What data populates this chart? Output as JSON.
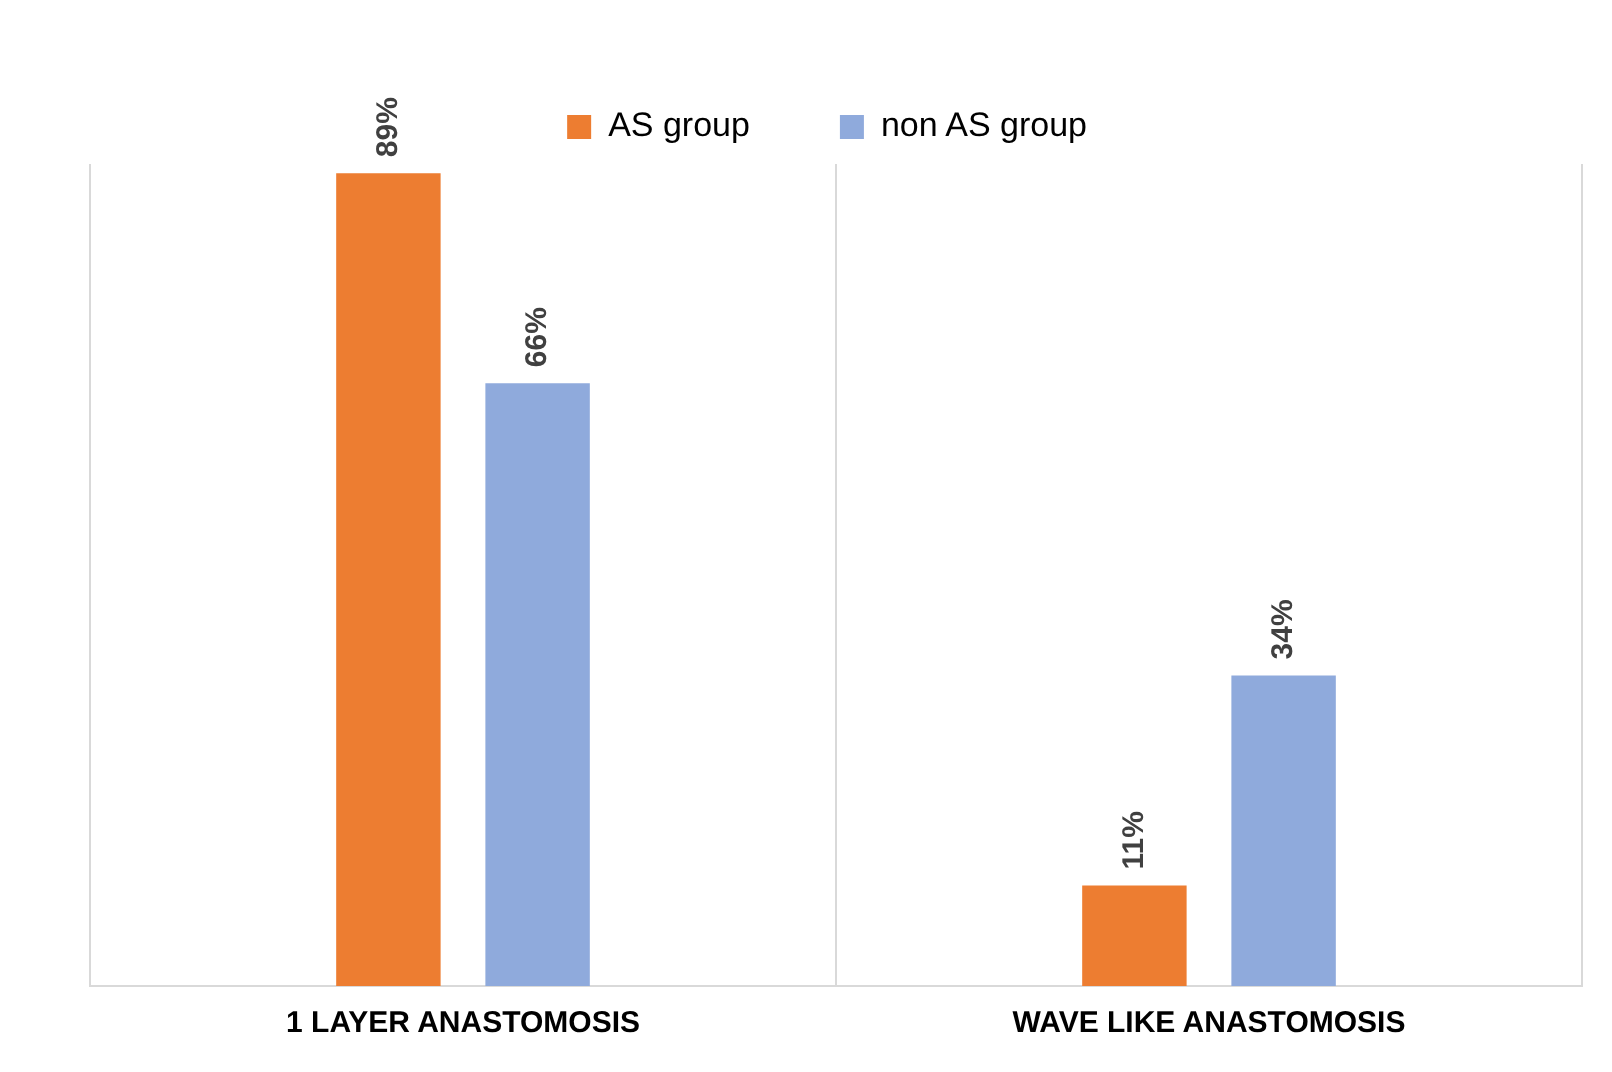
{
  "chart_data": {
    "type": "bar",
    "categories": [
      "1 LAYER ANASTOMOSIS",
      "WAVE LIKE ANASTOMOSIS"
    ],
    "series": [
      {
        "name": "AS group",
        "color": "#ed7d31",
        "values": [
          89,
          11
        ],
        "value_labels": [
          "89%",
          "11%"
        ]
      },
      {
        "name": "non AS group",
        "color": "#8faadc",
        "values": [
          66,
          34
        ],
        "value_labels": [
          "66%",
          "34%"
        ]
      }
    ],
    "relative": false,
    "grid": "x",
    "legend": "top"
  }
}
